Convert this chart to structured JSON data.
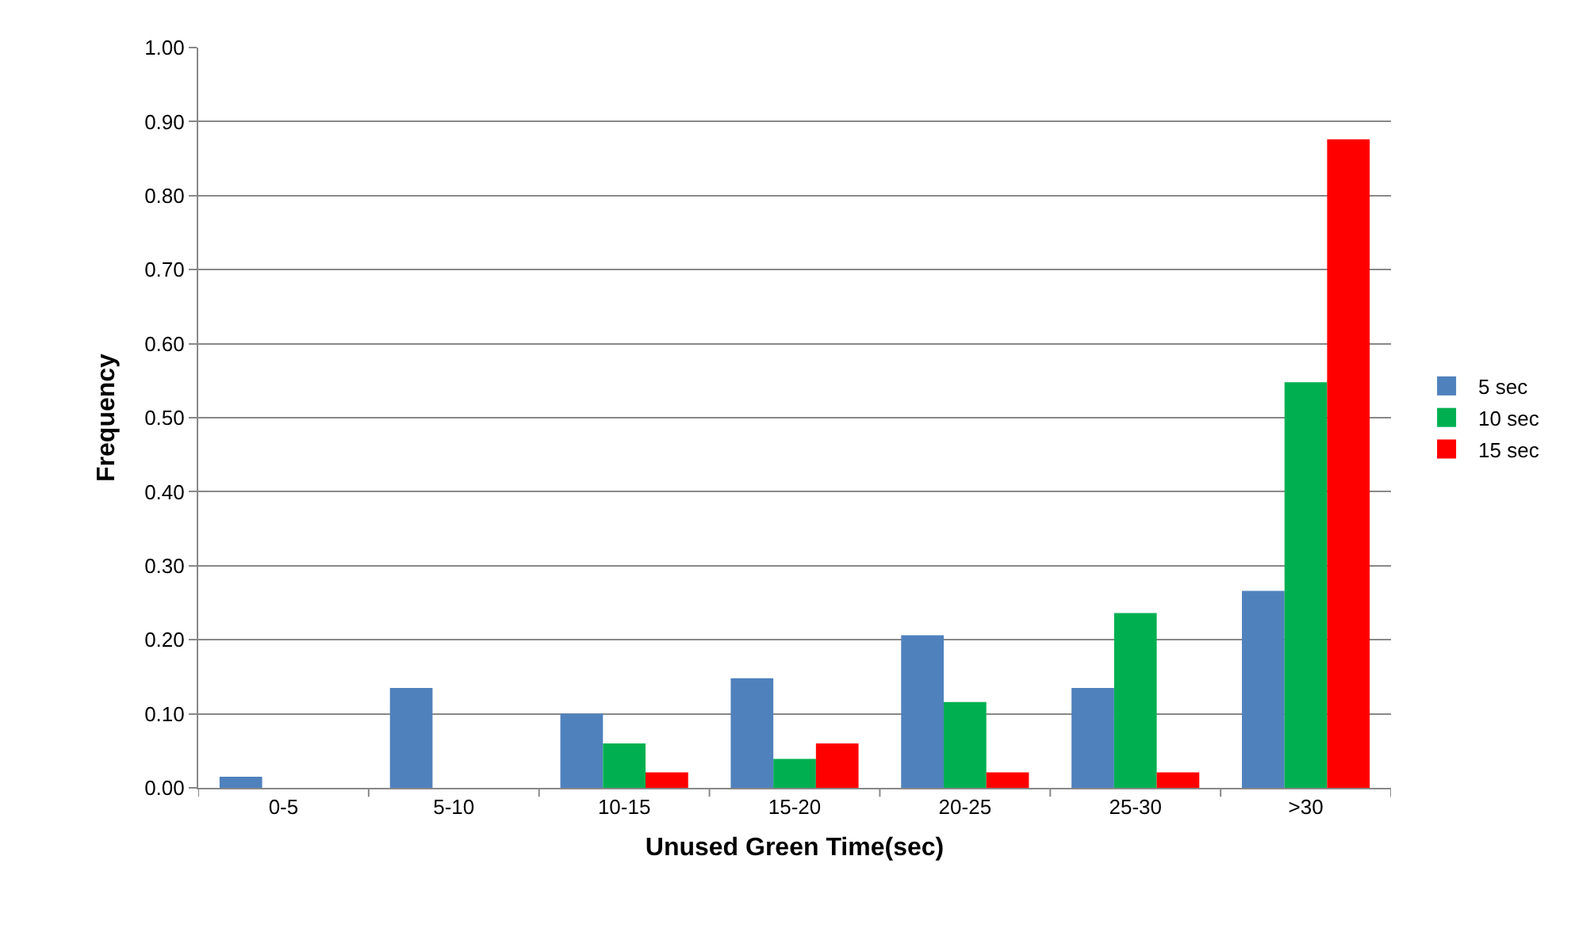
{
  "chart_data": {
    "type": "bar",
    "xlabel": "Unused Green Time(sec)",
    "ylabel": "Frequency",
    "categories": [
      "0-5",
      "5-10",
      "10-15",
      "15-20",
      "20-25",
      "25-30",
      ">30"
    ],
    "series": [
      {
        "name": "5 sec",
        "color": "#4f81bd",
        "values": [
          0.015,
          0.135,
          0.1,
          0.148,
          0.206,
          0.135,
          0.266
        ]
      },
      {
        "name": "10 sec",
        "color": "#00b050",
        "values": [
          0,
          0,
          0.06,
          0.039,
          0.116,
          0.236,
          0.548
        ]
      },
      {
        "name": "15 sec",
        "color": "#ff0000",
        "values": [
          0,
          0,
          0.021,
          0.06,
          0.021,
          0.021,
          0.876
        ]
      }
    ],
    "ylim": [
      0,
      1
    ],
    "yticks": [
      {
        "value": 0,
        "label": "0.00"
      },
      {
        "value": 0.1,
        "label": "0.10"
      },
      {
        "value": 0.2,
        "label": "0.20"
      },
      {
        "value": 0.3,
        "label": "0.30"
      },
      {
        "value": 0.4,
        "label": "0.40"
      },
      {
        "value": 0.5,
        "label": "0.50"
      },
      {
        "value": 0.6,
        "label": "0.60"
      },
      {
        "value": 0.7,
        "label": "0.70"
      },
      {
        "value": 0.8,
        "label": "0.80"
      },
      {
        "value": 0.9,
        "label": "0.90"
      },
      {
        "value": 1,
        "label": "1.00"
      }
    ],
    "grid": "y",
    "legend": "right"
  }
}
